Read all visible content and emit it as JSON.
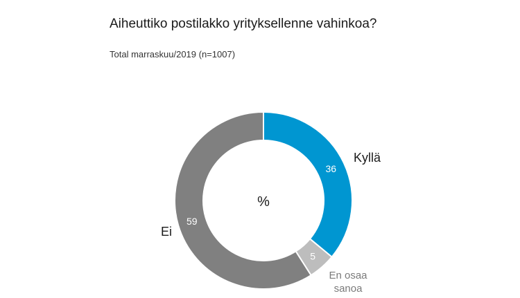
{
  "title": "Aiheuttiko postilakko yrityksellenne vahinkoa?",
  "subtitle": "Total marraskuu/2019 (n=1007)",
  "chart_data": {
    "type": "pie",
    "center_label": "%",
    "categories": [
      "Kyllä",
      "En osaa sanoa",
      "Ei"
    ],
    "values": [
      36,
      5,
      59
    ],
    "colors": [
      "#0096D1",
      "#BDBDBD",
      "#808080"
    ],
    "category_label_colors": [
      "#1a1a1a",
      "#7a7a7a",
      "#1a1a1a"
    ]
  }
}
